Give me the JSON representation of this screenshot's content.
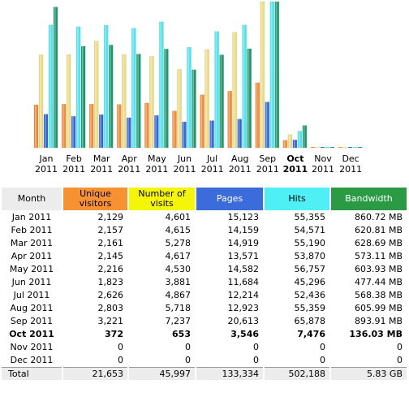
{
  "chart_data": {
    "type": "bar",
    "categories": [
      "Jan",
      "Feb",
      "Mar",
      "Apr",
      "May",
      "Jun",
      "Jul",
      "Aug",
      "Sep",
      "Oct",
      "Nov",
      "Dec"
    ],
    "years": [
      "2011",
      "2011",
      "2011",
      "2011",
      "2011",
      "2011",
      "2011",
      "2011",
      "2011",
      "2011",
      "2011",
      "2011"
    ],
    "current_index": 9,
    "series": [
      {
        "name": "Unique visitors",
        "color": "#f28c36",
        "values": [
          2129,
          2157,
          2161,
          2145,
          2216,
          1823,
          2626,
          2803,
          3221,
          372,
          0,
          0
        ]
      },
      {
        "name": "Number of visits",
        "color": "#eedd80",
        "values": [
          4601,
          4615,
          5278,
          4617,
          4530,
          3881,
          4867,
          5718,
          7237,
          653,
          0,
          0
        ]
      },
      {
        "name": "Pages",
        "color": "#3366dd",
        "values": [
          15123,
          14159,
          14919,
          13571,
          14582,
          11684,
          12214,
          12923,
          20613,
          3546,
          0,
          0
        ]
      },
      {
        "name": "Hits",
        "color": "#4ee5f2",
        "values": [
          55355,
          54571,
          55190,
          53870,
          56757,
          45296,
          52436,
          55359,
          65878,
          7476,
          0,
          0
        ]
      },
      {
        "name": "Bandwidth",
        "color": "#1a9a6a",
        "values": [
          860.72,
          620.81,
          628.69,
          573.11,
          603.93,
          477.44,
          568.38,
          605.99,
          893.91,
          136.03,
          0,
          0
        ],
        "unit": "MB"
      }
    ]
  },
  "table": {
    "headers": {
      "month": "Month",
      "unique_visitors": "Unique visitors",
      "visits": "Number of visits",
      "pages": "Pages",
      "hits": "Hits",
      "bandwidth": "Bandwidth"
    },
    "header_colors": {
      "unique_visitors": "#f79232",
      "visits": "#f5f508",
      "pages": "#3c6cdc",
      "hits": "#4ef0f5",
      "bandwidth": "#2a9b44"
    },
    "rows": [
      {
        "month": "Jan 2011",
        "unique": "2,129",
        "visits": "4,601",
        "pages": "15,123",
        "hits": "55,355",
        "bandwidth": "860.72 MB"
      },
      {
        "month": "Feb 2011",
        "unique": "2,157",
        "visits": "4,615",
        "pages": "14,159",
        "hits": "54,571",
        "bandwidth": "620.81 MB"
      },
      {
        "month": "Mar 2011",
        "unique": "2,161",
        "visits": "5,278",
        "pages": "14,919",
        "hits": "55,190",
        "bandwidth": "628.69 MB"
      },
      {
        "month": "Apr 2011",
        "unique": "2,145",
        "visits": "4,617",
        "pages": "13,571",
        "hits": "53,870",
        "bandwidth": "573.11 MB"
      },
      {
        "month": "May 2011",
        "unique": "2,216",
        "visits": "4,530",
        "pages": "14,582",
        "hits": "56,757",
        "bandwidth": "603.93 MB"
      },
      {
        "month": "Jun 2011",
        "unique": "1,823",
        "visits": "3,881",
        "pages": "11,684",
        "hits": "45,296",
        "bandwidth": "477.44 MB"
      },
      {
        "month": "Jul 2011",
        "unique": "2,626",
        "visits": "4,867",
        "pages": "12,214",
        "hits": "52,436",
        "bandwidth": "568.38 MB"
      },
      {
        "month": "Aug 2011",
        "unique": "2,803",
        "visits": "5,718",
        "pages": "12,923",
        "hits": "55,359",
        "bandwidth": "605.99 MB"
      },
      {
        "month": "Sep 2011",
        "unique": "3,221",
        "visits": "7,237",
        "pages": "20,613",
        "hits": "65,878",
        "bandwidth": "893.91 MB"
      },
      {
        "month": "Oct 2011",
        "unique": "372",
        "visits": "653",
        "pages": "3,546",
        "hits": "7,476",
        "bandwidth": "136.03 MB"
      },
      {
        "month": "Nov 2011",
        "unique": "0",
        "visits": "0",
        "pages": "0",
        "hits": "0",
        "bandwidth": "0"
      },
      {
        "month": "Dec 2011",
        "unique": "0",
        "visits": "0",
        "pages": "0",
        "hits": "0",
        "bandwidth": "0"
      }
    ],
    "total": {
      "month": "Total",
      "unique": "21,653",
      "visits": "45,997",
      "pages": "133,334",
      "hits": "502,188",
      "bandwidth": "5.83 GB"
    }
  }
}
